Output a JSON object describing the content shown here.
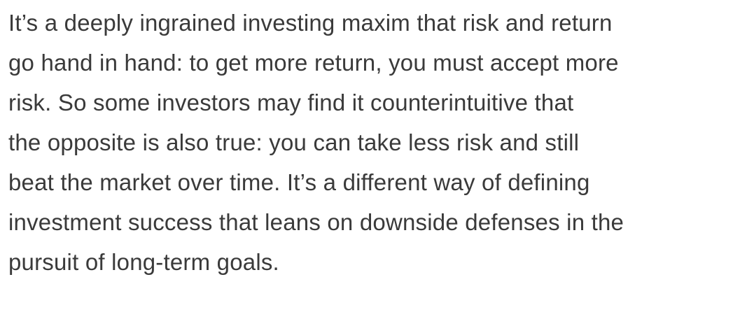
{
  "paragraph": {
    "lines": [
      "It’s a deeply ingrained investing maxim that risk and return",
      "go hand in hand: to get more return, you must accept more",
      "risk. So some investors may find it counterintuitive that",
      "the opposite is also true: you can take less risk and still",
      "beat the market over time. It’s a different way of defining",
      "investment success that leans on downside defenses in the",
      "pursuit of long-term goals."
    ]
  }
}
